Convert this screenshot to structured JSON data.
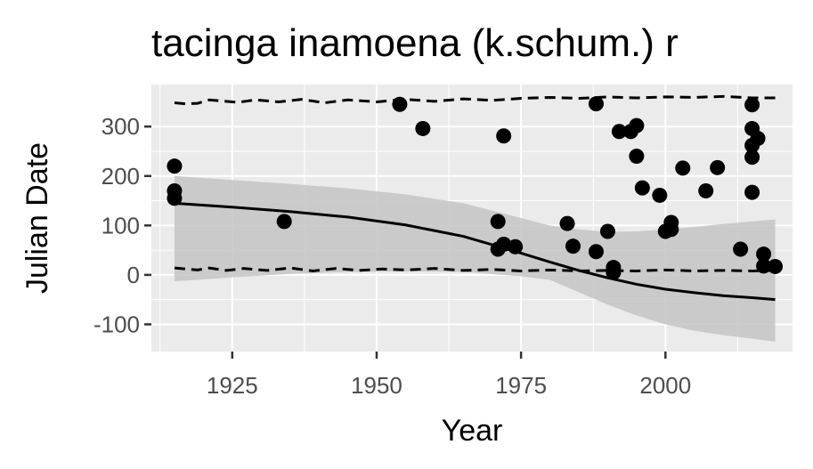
{
  "chart_data": {
    "type": "scatter",
    "title": "tacinga inamoena (k.schum.) r",
    "xlabel": "Year",
    "ylabel": "Julian Date",
    "xlim": [
      1911,
      2022
    ],
    "ylim": [
      -155,
      385
    ],
    "x_ticks": [
      1925,
      1950,
      1975,
      2000
    ],
    "x_tick_labels": [
      "1925",
      "1950",
      "1975",
      "2000"
    ],
    "y_ticks": [
      -100,
      0,
      100,
      200,
      300
    ],
    "y_tick_labels": [
      "-100",
      "0",
      "100",
      "200",
      "300"
    ],
    "grid": true,
    "legend": "none",
    "colors": {
      "panel": "#ebebeb",
      "grid": "#ffffff",
      "point": "#000000",
      "ribbon": "#c4c4c4",
      "line": "#000000"
    },
    "points": [
      {
        "x": 1915,
        "y": 220
      },
      {
        "x": 1915,
        "y": 170
      },
      {
        "x": 1915,
        "y": 155
      },
      {
        "x": 1934,
        "y": 108
      },
      {
        "x": 1954,
        "y": 345
      },
      {
        "x": 1958,
        "y": 296
      },
      {
        "x": 1971,
        "y": 108
      },
      {
        "x": 1971,
        "y": 52
      },
      {
        "x": 1972,
        "y": 281
      },
      {
        "x": 1972,
        "y": 62
      },
      {
        "x": 1974,
        "y": 57
      },
      {
        "x": 1983,
        "y": 104
      },
      {
        "x": 1984,
        "y": 58
      },
      {
        "x": 1988,
        "y": 346
      },
      {
        "x": 1988,
        "y": 47
      },
      {
        "x": 1990,
        "y": 88
      },
      {
        "x": 1991,
        "y": 15
      },
      {
        "x": 1991,
        "y": 5
      },
      {
        "x": 1992,
        "y": 290
      },
      {
        "x": 1994,
        "y": 290
      },
      {
        "x": 1995,
        "y": 302
      },
      {
        "x": 1995,
        "y": 240
      },
      {
        "x": 1996,
        "y": 176
      },
      {
        "x": 1999,
        "y": 161
      },
      {
        "x": 2000,
        "y": 88
      },
      {
        "x": 2001,
        "y": 106
      },
      {
        "x": 2001,
        "y": 92
      },
      {
        "x": 2003,
        "y": 216
      },
      {
        "x": 2007,
        "y": 170
      },
      {
        "x": 2009,
        "y": 217
      },
      {
        "x": 2013,
        "y": 52
      },
      {
        "x": 2015,
        "y": 344
      },
      {
        "x": 2015,
        "y": 296
      },
      {
        "x": 2015,
        "y": 262
      },
      {
        "x": 2015,
        "y": 238
      },
      {
        "x": 2015,
        "y": 167
      },
      {
        "x": 2016,
        "y": 276
      },
      {
        "x": 2017,
        "y": 42
      },
      {
        "x": 2017,
        "y": 18
      },
      {
        "x": 2019,
        "y": 17
      }
    ],
    "fit_line": {
      "x": [
        1915,
        1925,
        1935,
        1945,
        1955,
        1965,
        1975,
        1980,
        1985,
        1990,
        1995,
        2000,
        2005,
        2010,
        2015,
        2019
      ],
      "y": [
        145,
        137,
        128,
        117,
        101,
        78,
        44,
        26,
        9,
        -6,
        -19,
        -29,
        -36,
        -42,
        -46,
        -50
      ]
    },
    "confidence_band": {
      "x": [
        1915,
        1925,
        1935,
        1945,
        1955,
        1965,
        1975,
        1980,
        1985,
        1990,
        1995,
        2000,
        2005,
        2010,
        2015,
        2019
      ],
      "upper": [
        200,
        192,
        184,
        175,
        163,
        145,
        115,
        100,
        92,
        87,
        88,
        92,
        97,
        103,
        108,
        112
      ],
      "lower": [
        -13,
        -5,
        2,
        6,
        7,
        6,
        -3,
        -10,
        -35,
        -60,
        -82,
        -100,
        -113,
        -122,
        -129,
        -135
      ]
    },
    "upper_quantile": {
      "x": [
        1915,
        1917,
        1919,
        1921,
        1923,
        1926,
        1929,
        1933,
        1937,
        1941,
        1945,
        1950,
        1955,
        1960,
        1965,
        1970,
        1975,
        1980,
        1985,
        1990,
        1995,
        2000,
        2005,
        2010,
        2015,
        2019
      ],
      "y": [
        348,
        346,
        347,
        354,
        352,
        349,
        354,
        350,
        355,
        348,
        354,
        350,
        355,
        351,
        356,
        353,
        357,
        359,
        357,
        360,
        358,
        360,
        359,
        361,
        358,
        358
      ]
    },
    "lower_quantile": {
      "x": [
        1915,
        1917,
        1919,
        1921,
        1924,
        1927,
        1931,
        1935,
        1939,
        1943,
        1947,
        1951,
        1955,
        1960,
        1965,
        1970,
        1975,
        1980,
        1985,
        1990,
        1995,
        2000,
        2005,
        2010,
        2015,
        2019
      ],
      "y": [
        14,
        12,
        10,
        14,
        9,
        13,
        9,
        14,
        8,
        13,
        9,
        12,
        10,
        13,
        9,
        11,
        8,
        10,
        8,
        9,
        8,
        10,
        8,
        9,
        8,
        9
      ]
    }
  }
}
